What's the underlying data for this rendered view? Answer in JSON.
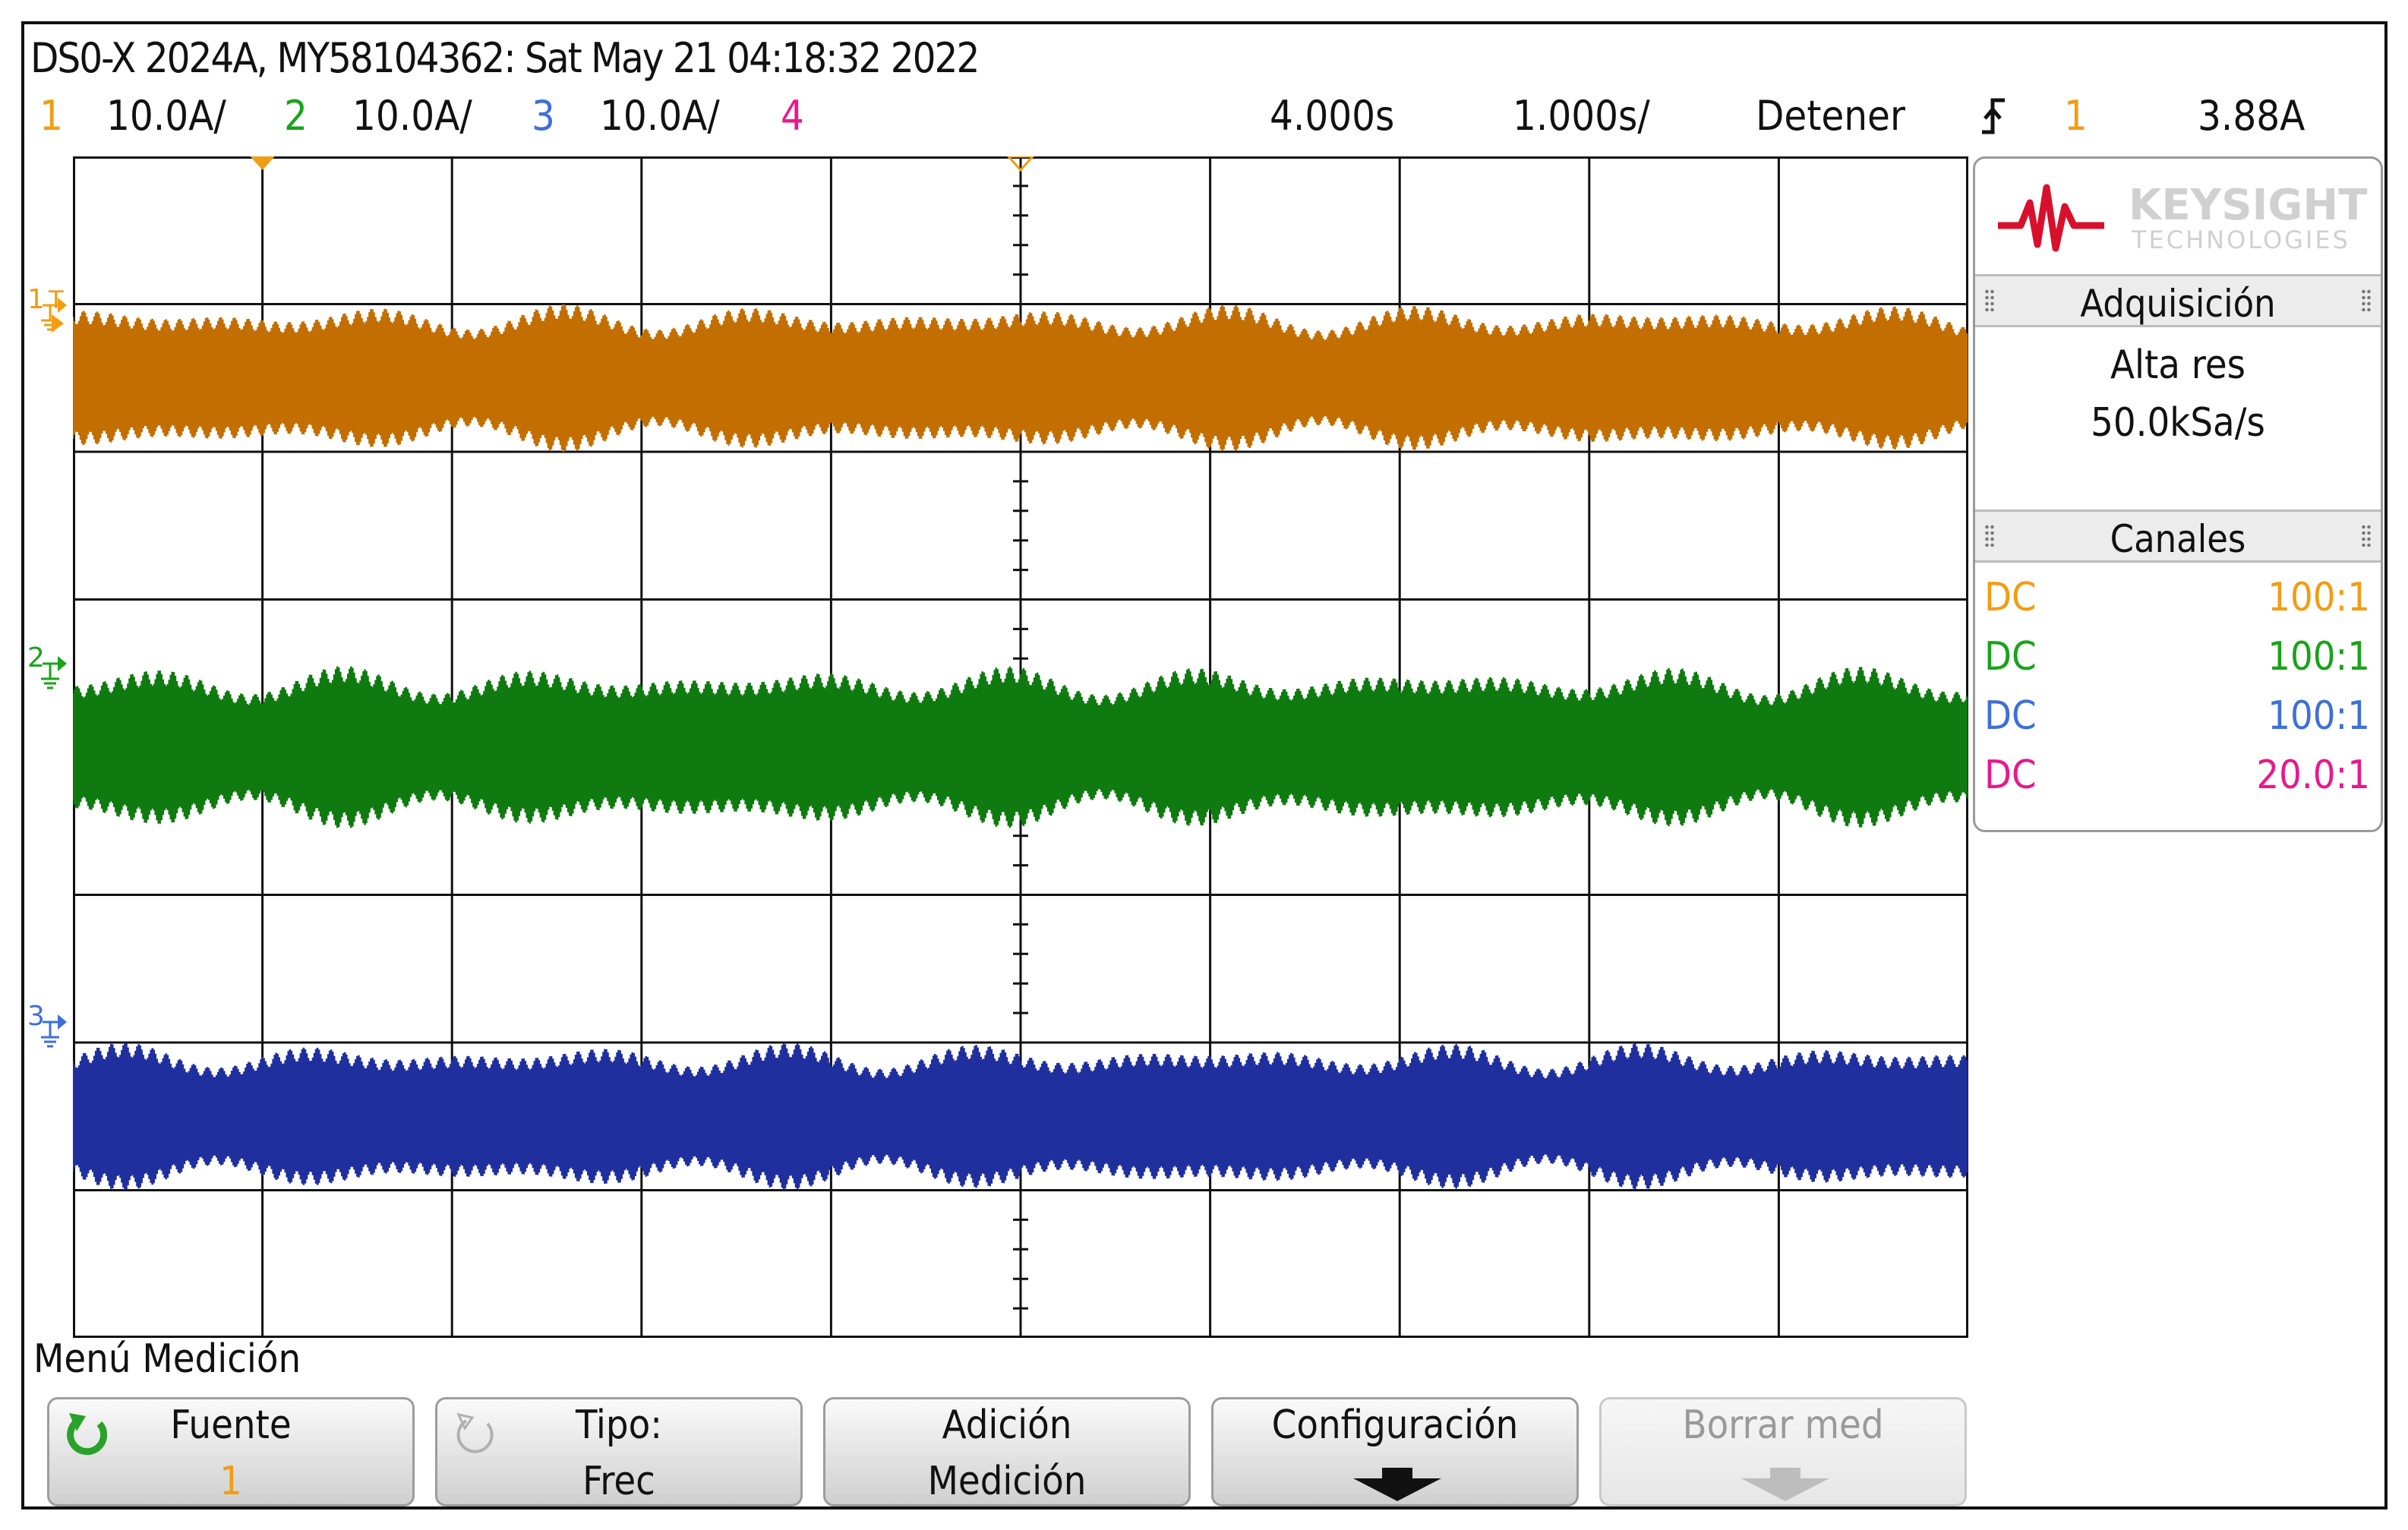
{
  "title": "DS0-X 2024A, MY58104362: Sat May 21 04:18:32 2022",
  "colors": {
    "ch1": "#c26e00",
    "ch2": "#0f7a0f",
    "ch3": "#1f2f9e",
    "ch4": "#e0148a",
    "ch1_label": "#f39c12",
    "ch2_label": "#1aa31a",
    "ch3_label": "#3f6fd8",
    "ch4_label": "#e8188d"
  },
  "channels": [
    {
      "num": "1",
      "scale": "10.0A/",
      "coupling": "DC",
      "probe": "100:1"
    },
    {
      "num": "2",
      "scale": "10.0A/",
      "coupling": "DC",
      "probe": "100:1"
    },
    {
      "num": "3",
      "scale": "10.0A/",
      "coupling": "DC",
      "probe": "100:1"
    },
    {
      "num": "4",
      "scale": "",
      "coupling": "DC",
      "probe": "20.0:1"
    }
  ],
  "timebase": {
    "position": "4.000s",
    "scale": "1.000s/"
  },
  "run_state": "Detener",
  "trigger": {
    "source": "1",
    "level": "3.88A",
    "slope_icon": "rising-edge-icon"
  },
  "brand": {
    "name": "KEYSIGHT",
    "sub": "TECHNOLOGIES"
  },
  "panel": {
    "acquisition_title": "Adquisición",
    "acquisition_mode": "Alta res",
    "sample_rate": "50.0kSa/s",
    "channels_title": "Canales"
  },
  "menu_title": "Menú Medición",
  "softkeys": [
    {
      "line1": "Fuente",
      "line2": "1",
      "icon": "rotate-knob-icon"
    },
    {
      "line1": "Tipo:",
      "line2": "Frec",
      "icon": "rotate-knob-icon"
    },
    {
      "line1": "Adición",
      "line2": "Medición"
    },
    {
      "line1": "Configuración",
      "line2": "",
      "icon": "down-arrow-icon"
    },
    {
      "line1": "Borrar med",
      "line2": "",
      "icon": "down-arrow-icon",
      "disabled": true
    }
  ],
  "waveforms": [
    {
      "channel": "1",
      "kind": "modulated-ac"
    },
    {
      "channel": "2",
      "kind": "modulated-ac"
    },
    {
      "channel": "3",
      "kind": "modulated-ac"
    }
  ]
}
